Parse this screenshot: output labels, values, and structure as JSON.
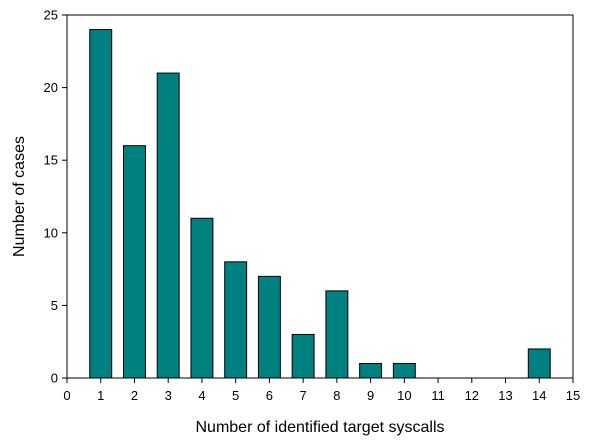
{
  "chart_data": {
    "type": "bar",
    "title": "",
    "xlabel": "Number of identified target syscalls",
    "ylabel": "Number of cases",
    "x": [
      1,
      2,
      3,
      4,
      5,
      6,
      7,
      8,
      9,
      10,
      14
    ],
    "values": [
      24,
      16,
      21,
      11,
      8,
      7,
      3,
      6,
      1,
      1,
      2
    ],
    "xlim": [
      0,
      15
    ],
    "ylim": [
      0,
      25
    ],
    "xticks": [
      0,
      1,
      2,
      3,
      4,
      5,
      6,
      7,
      8,
      9,
      10,
      11,
      12,
      13,
      14,
      15
    ],
    "yticks": [
      0,
      5,
      10,
      15,
      20,
      25
    ],
    "bar_width": 0.65,
    "grid": false,
    "legend": "none",
    "colors": {
      "bar_fill": "#008080",
      "bar_edge": "#000000",
      "axis": "#000000"
    }
  }
}
